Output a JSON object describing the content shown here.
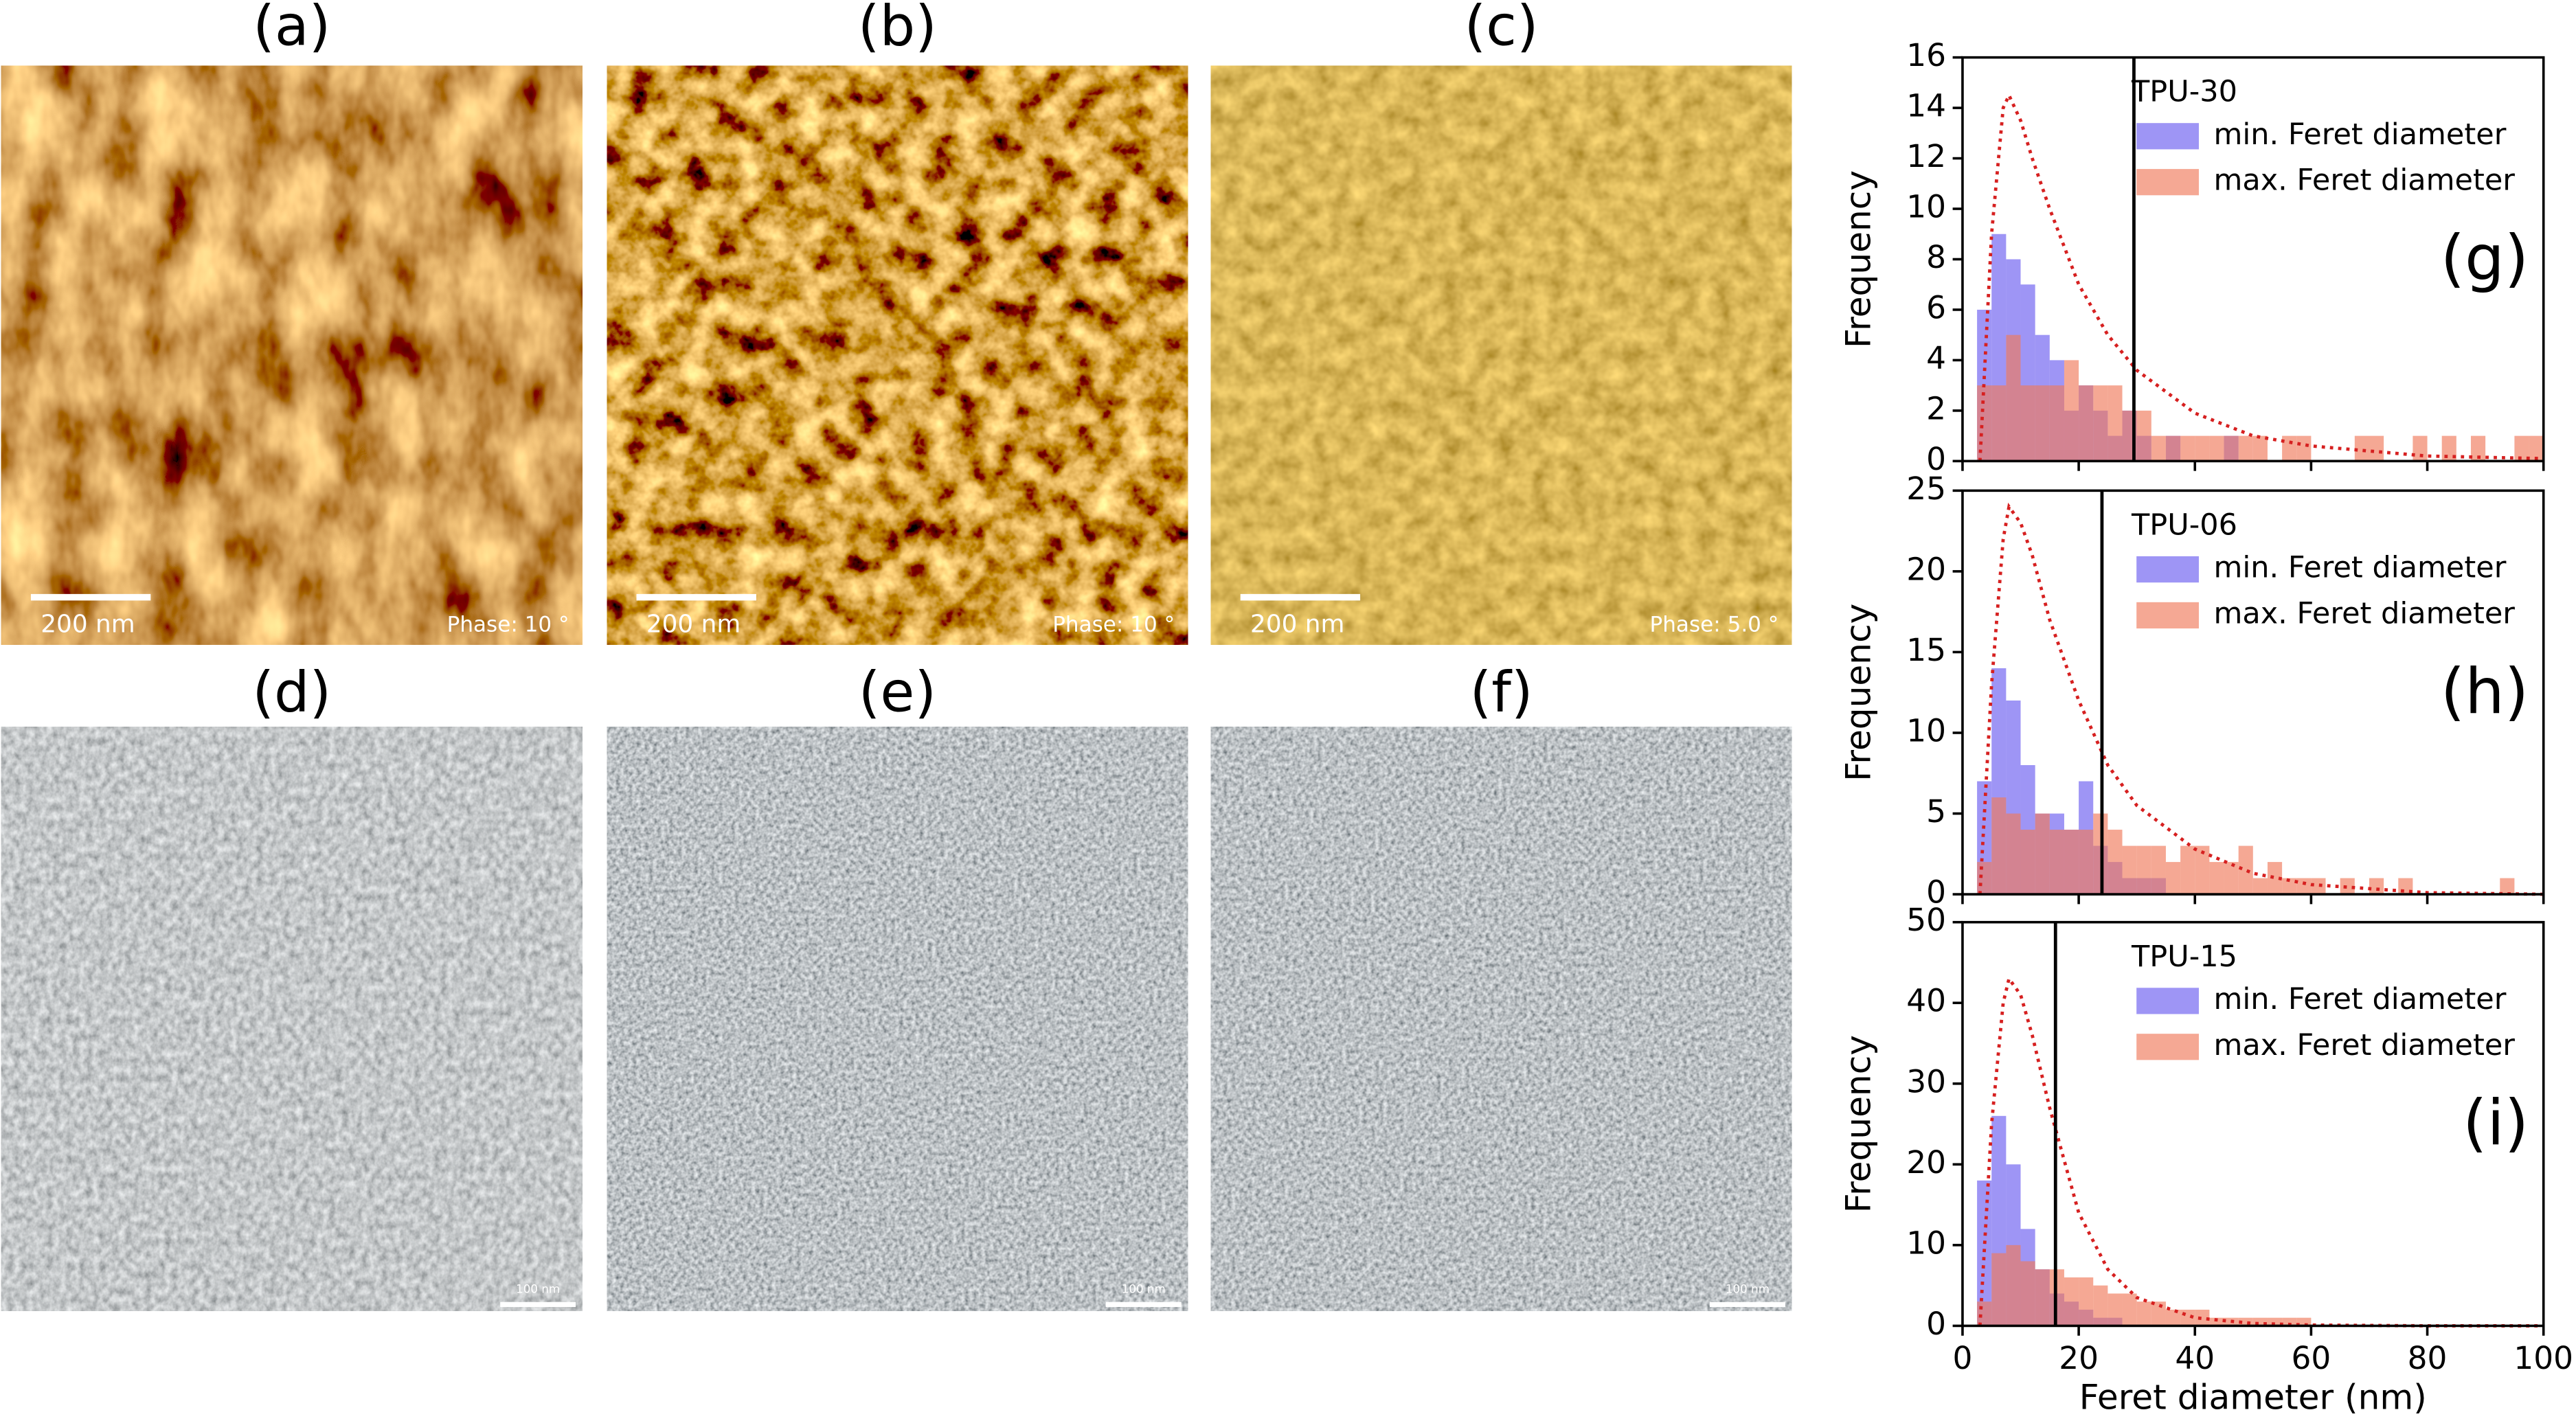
{
  "panels": [
    {
      "label": "(a)",
      "scale_bar": "200 nm",
      "phase": "Phase: 10 °"
    },
    {
      "label": "(b)",
      "scale_bar": "200 nm",
      "phase": "Phase: 10 °"
    },
    {
      "label": "(c)",
      "scale_bar": "200 nm",
      "phase": "Phase: 5.0 °"
    },
    {
      "label": "(d)",
      "scale_bar": "100 nm"
    },
    {
      "label": "(e)",
      "scale_bar": "100 nm"
    },
    {
      "label": "(f)",
      "scale_bar": "100 nm"
    }
  ],
  "chart_data": [
    {
      "type": "histogram",
      "label": "(g)",
      "legend_title": "TPU-30",
      "ylabel": "Frequency",
      "bins": [
        0,
        2.5,
        5,
        7.5,
        10,
        12.5,
        15,
        17.5,
        20,
        22.5,
        25,
        27.5,
        30,
        32.5,
        35,
        37.5,
        40,
        42.5,
        45,
        47.5,
        50,
        52.5,
        55,
        57.5,
        60,
        62.5,
        65,
        67.5,
        70,
        72.5,
        75,
        77.5,
        80,
        82.5,
        85,
        87.5,
        90,
        92.5,
        95,
        97.5,
        100
      ],
      "series": [
        {
          "name": "min. Feret diameter",
          "color": "#6a5cf0",
          "values": [
            0,
            6,
            9,
            8,
            7,
            5,
            4,
            2,
            3,
            2,
            1,
            2,
            1,
            0,
            1,
            0,
            0,
            0,
            1,
            0,
            0,
            0,
            0,
            0,
            0,
            0,
            0,
            0,
            0,
            0,
            0,
            0,
            0,
            0,
            0,
            0,
            0,
            0,
            0,
            0
          ]
        },
        {
          "name": "max. Feret diameter",
          "color": "#f07a5a",
          "values": [
            0,
            3,
            3,
            5,
            3,
            3,
            3,
            4,
            3,
            3,
            3,
            2,
            2,
            1,
            1,
            1,
            1,
            1,
            1,
            1,
            1,
            0,
            1,
            1,
            0,
            0,
            0,
            1,
            1,
            0,
            0,
            1,
            0,
            1,
            0,
            1,
            0,
            0,
            1,
            1
          ]
        }
      ],
      "fit": {
        "color": "#d62020",
        "x": [
          3,
          5,
          7,
          8,
          10,
          12,
          15,
          20,
          25,
          30,
          40,
          50,
          60,
          80,
          100
        ],
        "values": [
          0,
          9,
          14,
          14.5,
          13.5,
          12,
          10,
          7,
          5,
          3.6,
          1.9,
          1,
          0.6,
          0.2,
          0.1
        ]
      },
      "vline": 29.5,
      "xlim": [
        0,
        100
      ],
      "xticks": [
        0,
        20,
        40,
        60,
        80,
        100
      ],
      "ylim": [
        0,
        16
      ],
      "yticks": [
        0,
        2,
        4,
        6,
        8,
        10,
        12,
        14,
        16
      ]
    },
    {
      "type": "histogram",
      "label": "(h)",
      "legend_title": "TPU-06",
      "ylabel": "Frequency",
      "bins": [
        0,
        2.5,
        5,
        7.5,
        10,
        12.5,
        15,
        17.5,
        20,
        22.5,
        25,
        27.5,
        30,
        32.5,
        35,
        37.5,
        40,
        42.5,
        45,
        47.5,
        50,
        52.5,
        55,
        57.5,
        60,
        62.5,
        65,
        67.5,
        70,
        72.5,
        75,
        77.5,
        80,
        82.5,
        85,
        87.5,
        90,
        92.5,
        95,
        97.5,
        100
      ],
      "series": [
        {
          "name": "min. Feret diameter",
          "color": "#6a5cf0",
          "values": [
            0,
            7,
            14,
            12,
            8,
            5,
            5,
            4,
            7,
            3,
            2,
            1,
            1,
            1,
            0,
            0,
            0,
            0,
            0,
            0,
            0,
            0,
            0,
            0,
            0,
            0,
            0,
            0,
            0,
            0,
            0,
            0,
            0,
            0,
            0,
            0,
            0,
            0,
            0,
            0
          ]
        },
        {
          "name": "max. Feret diameter",
          "color": "#f07a5a",
          "values": [
            0,
            2,
            6,
            5,
            4,
            5,
            4,
            4,
            4,
            5,
            4,
            3,
            3,
            3,
            2,
            3,
            3,
            2,
            2,
            3,
            1,
            2,
            1,
            1,
            1,
            0,
            1,
            0,
            1,
            0,
            1,
            0,
            0,
            0,
            0,
            0,
            0,
            1,
            0,
            0
          ]
        }
      ],
      "fit": {
        "color": "#d62020",
        "x": [
          3,
          5,
          7,
          8,
          10,
          12,
          15,
          20,
          25,
          30,
          40,
          50,
          60,
          80,
          100
        ],
        "values": [
          0,
          13,
          22,
          24,
          23,
          21,
          17,
          12,
          8,
          5.5,
          2.8,
          1.3,
          0.6,
          0.1,
          0
        ]
      },
      "vline": 24,
      "xlim": [
        0,
        100
      ],
      "xticks": [
        0,
        20,
        40,
        60,
        80,
        100
      ],
      "ylim": [
        0,
        25
      ],
      "yticks": [
        0,
        5,
        10,
        15,
        20,
        25
      ]
    },
    {
      "type": "histogram",
      "label": "(i)",
      "legend_title": "TPU-15",
      "ylabel": "Frequency",
      "xlabel": "Feret diameter (nm)",
      "bins": [
        0,
        2.5,
        5,
        7.5,
        10,
        12.5,
        15,
        17.5,
        20,
        22.5,
        25,
        27.5,
        30,
        32.5,
        35,
        37.5,
        40,
        42.5,
        45,
        47.5,
        50,
        52.5,
        55,
        57.5,
        60,
        62.5,
        65,
        67.5,
        70,
        72.5,
        75,
        77.5,
        80,
        82.5,
        85,
        87.5,
        90,
        92.5,
        95,
        97.5,
        100
      ],
      "series": [
        {
          "name": "min. Feret diameter",
          "color": "#6a5cf0",
          "values": [
            0,
            18,
            26,
            20,
            12,
            7,
            4,
            3,
            2,
            1,
            1,
            0,
            0,
            0,
            0,
            0,
            0,
            0,
            0,
            0,
            0,
            0,
            0,
            0,
            0,
            0,
            0,
            0,
            0,
            0,
            0,
            0,
            0,
            0,
            0,
            0,
            0,
            0,
            0,
            0
          ]
        },
        {
          "name": "max. Feret diameter",
          "color": "#f07a5a",
          "values": [
            0,
            3,
            9,
            10,
            8,
            7,
            7,
            6,
            6,
            5,
            4,
            4,
            3,
            3,
            2,
            2,
            2,
            1,
            1,
            1,
            1,
            1,
            1,
            1,
            0,
            0,
            0,
            0,
            0,
            0,
            0,
            0,
            0,
            0,
            0,
            0,
            0,
            0,
            0,
            0
          ]
        }
      ],
      "fit": {
        "color": "#d62020",
        "x": [
          3,
          5,
          7,
          8,
          10,
          12,
          15,
          20,
          25,
          30,
          40,
          50,
          60,
          80,
          100
        ],
        "values": [
          0,
          25,
          40,
          43,
          41,
          36,
          27,
          14,
          7,
          3.5,
          1,
          0.3,
          0.1,
          0,
          0
        ]
      },
      "vline": 16,
      "xlim": [
        0,
        100
      ],
      "xticks": [
        0,
        20,
        40,
        60,
        80,
        100
      ],
      "ylim": [
        0,
        50
      ],
      "yticks": [
        0,
        10,
        20,
        30,
        40,
        50
      ]
    }
  ]
}
